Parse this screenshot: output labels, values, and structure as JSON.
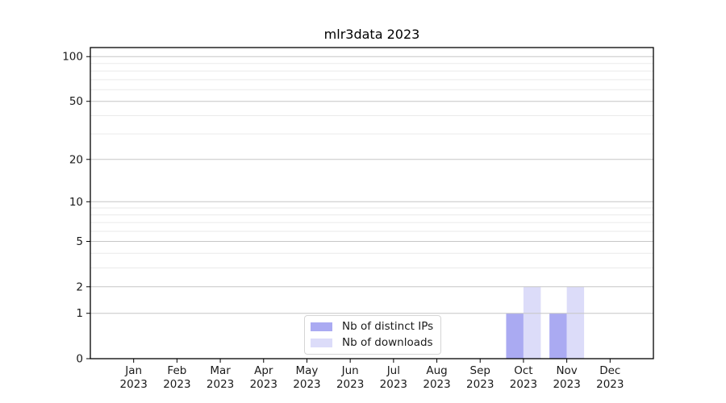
{
  "chart_data": {
    "type": "bar",
    "title": "mlr3data 2023",
    "xlabel": "",
    "ylabel": "",
    "months": [
      "Jan",
      "Feb",
      "Mar",
      "Apr",
      "May",
      "Jun",
      "Jul",
      "Aug",
      "Sep",
      "Oct",
      "Nov",
      "Dec"
    ],
    "year": "2023",
    "series": [
      {
        "name": "Nb of distinct IPs",
        "color": "#aaaaf2",
        "values": [
          0,
          0,
          0,
          0,
          0,
          0,
          0,
          0,
          0,
          1,
          1,
          0
        ]
      },
      {
        "name": "Nb of downloads",
        "color": "#dcdcf9",
        "values": [
          0,
          0,
          0,
          0,
          0,
          0,
          0,
          0,
          0,
          2,
          2,
          0
        ]
      }
    ],
    "yscale": "log1p",
    "yticks": [
      0,
      1,
      2,
      5,
      10,
      20,
      50,
      100
    ],
    "yticks_minor": [
      3,
      4,
      6,
      7,
      8,
      9,
      30,
      40,
      60,
      70,
      80,
      90
    ],
    "ylim": [
      0,
      115
    ],
    "grid": true,
    "legend_position": "lower center",
    "colors": {
      "major_grid": "#c6c6c6",
      "minor_grid": "#eaeaea",
      "axis": "#000000",
      "text": "#1a1a1a",
      "background": "#ffffff",
      "legend_border": "#d5d5d5"
    }
  }
}
